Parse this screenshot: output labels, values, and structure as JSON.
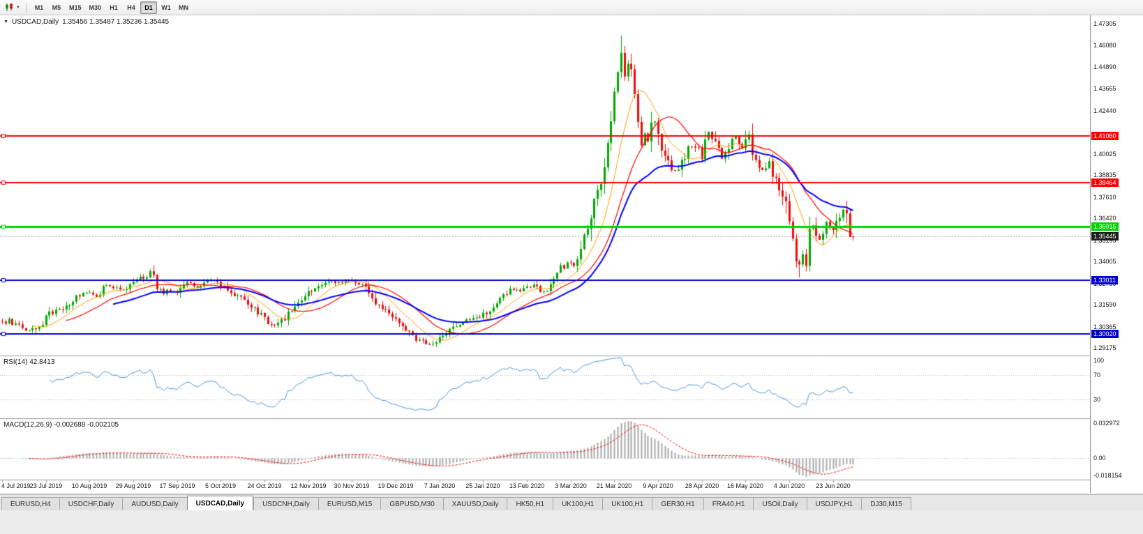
{
  "toolbar": {
    "chart_type_icon": "candlestick-chart-icon",
    "timeframes": [
      "M1",
      "M5",
      "M15",
      "M30",
      "H1",
      "H4",
      "D1",
      "W1",
      "MN"
    ],
    "active_timeframe": "D1"
  },
  "tabs": [
    {
      "label": "EURUSD,H4",
      "active": false
    },
    {
      "label": "USDCHF,Daily",
      "active": false
    },
    {
      "label": "AUDUSD,Daily",
      "active": false
    },
    {
      "label": "USDCAD,Daily",
      "active": true
    },
    {
      "label": "USDCNH,Daily",
      "active": false
    },
    {
      "label": "EURUSD,M15",
      "active": false
    },
    {
      "label": "GBPUSD,M30",
      "active": false
    },
    {
      "label": "XAUUSD,Daily",
      "active": false
    },
    {
      "label": "HK50,H1",
      "active": false
    },
    {
      "label": "UK100,H1",
      "active": false
    },
    {
      "label": "UK100,H1",
      "active": false
    },
    {
      "label": "GER30,H1",
      "active": false
    },
    {
      "label": "FRA40,H1",
      "active": false
    },
    {
      "label": "USOil,Daily",
      "active": false
    },
    {
      "label": "USDJPY,H1",
      "active": false
    },
    {
      "label": "DJ30,M15",
      "active": false
    }
  ],
  "chart_data": {
    "type": "candlestick-with-indicators",
    "main": {
      "title_symbol": "USDCAD,Daily",
      "title_quote": "1.35456 1.35487 1.35236 1.35445",
      "last_quote": {
        "open": 1.35456,
        "high": 1.35487,
        "low": 1.35236,
        "close": 1.35445
      },
      "current_price": 1.35445,
      "price_scale": {
        "max": 1.4765,
        "min": 1.2888
      },
      "price_axis_labels": [
        1.47305,
        1.4608,
        1.4489,
        1.43665,
        1.4244,
        1.40025,
        1.38835,
        1.3761,
        1.3642,
        1.35195,
        1.34005,
        1.3278,
        1.3159,
        1.30365,
        1.29175
      ],
      "x_axis_labels": [
        "4 Jul 2019",
        "23 Jul 2019",
        "10 Aug 2019",
        "29 Aug 2019",
        "17 Sep 2019",
        "5 Oct 2019",
        "24 Oct 2019",
        "12 Nov 2019",
        "30 Nov 2019",
        "19 Dec 2019",
        "7 Jan 2020",
        "25 Jan 2020",
        "13 Feb 2020",
        "3 Mar 2020",
        "21 Mar 2020",
        "9 Apr 2020",
        "28 Apr 2020",
        "16 May 2020",
        "4 Jun 2020",
        "23 Jun 2020"
      ],
      "bars_per_label": 13,
      "candle_count": 254,
      "colors": {
        "up": "#00a800",
        "down": "#ee0c0c",
        "current_line": "#b0b0b0",
        "current_tag_bg": "#1b1b1b"
      },
      "lines": [
        {
          "name": "resistance-line-1",
          "price": 1.4106,
          "color": "#ff0000",
          "width": 2
        },
        {
          "name": "resistance-line-2",
          "price": 1.38464,
          "color": "#ff0000",
          "width": 2
        },
        {
          "name": "pivot-line-green",
          "price": 1.36015,
          "color": "#00d200",
          "width": 3
        },
        {
          "name": "support-line-1",
          "price": 1.33011,
          "color": "#0000cd",
          "width": 2
        },
        {
          "name": "support-line-2",
          "price": 1.3002,
          "color": "#0000cd",
          "width": 2
        }
      ],
      "moving_averages": [
        {
          "name": "ma-fast",
          "type": "sma",
          "period": 10,
          "color": "#ff9c00",
          "width": 1
        },
        {
          "name": "ma-medium",
          "type": "sma",
          "period": 20,
          "color": "#ff0000",
          "width": 1.2
        },
        {
          "name": "ma-slow",
          "type": "ema",
          "period": 34,
          "color": "#0000ff",
          "width": 2
        }
      ],
      "extremes": [
        {
          "index": 184,
          "kind": "high",
          "price": 1.4668
        },
        {
          "index": 237,
          "kind": "low",
          "price": 1.3316
        }
      ],
      "close_anchors": [
        [
          0,
          1.3062
        ],
        [
          2,
          1.3078
        ],
        [
          4,
          1.3052
        ],
        [
          6,
          1.303
        ],
        [
          8,
          1.3018
        ],
        [
          10,
          1.3032
        ],
        [
          12,
          1.306
        ],
        [
          14,
          1.3112
        ],
        [
          16,
          1.313
        ],
        [
          18,
          1.3148
        ],
        [
          20,
          1.3178
        ],
        [
          22,
          1.3212
        ],
        [
          24,
          1.3232
        ],
        [
          26,
          1.3226
        ],
        [
          28,
          1.321
        ],
        [
          30,
          1.3252
        ],
        [
          32,
          1.327
        ],
        [
          34,
          1.3262
        ],
        [
          36,
          1.3248
        ],
        [
          38,
          1.3278
        ],
        [
          40,
          1.3298
        ],
        [
          42,
          1.3318
        ],
        [
          44,
          1.3342
        ],
        [
          45,
          1.331
        ],
        [
          46,
          1.3262
        ],
        [
          48,
          1.3228
        ],
        [
          50,
          1.3244
        ],
        [
          52,
          1.3226
        ],
        [
          54,
          1.3262
        ],
        [
          56,
          1.3288
        ],
        [
          58,
          1.3258
        ],
        [
          60,
          1.3282
        ],
        [
          62,
          1.33
        ],
        [
          64,
          1.3292
        ],
        [
          66,
          1.3262
        ],
        [
          68,
          1.3232
        ],
        [
          70,
          1.3214
        ],
        [
          72,
          1.3186
        ],
        [
          74,
          1.3152
        ],
        [
          76,
          1.3122
        ],
        [
          78,
          1.3086
        ],
        [
          80,
          1.3048
        ],
        [
          82,
          1.3062
        ],
        [
          84,
          1.3096
        ],
        [
          86,
          1.314
        ],
        [
          88,
          1.3186
        ],
        [
          90,
          1.3222
        ],
        [
          92,
          1.3252
        ],
        [
          94,
          1.3272
        ],
        [
          96,
          1.3288
        ],
        [
          98,
          1.3302
        ],
        [
          100,
          1.3288
        ],
        [
          102,
          1.3296
        ],
        [
          104,
          1.3304
        ],
        [
          106,
          1.3282
        ],
        [
          108,
          1.3252
        ],
        [
          110,
          1.321
        ],
        [
          112,
          1.3164
        ],
        [
          114,
          1.313
        ],
        [
          116,
          1.3094
        ],
        [
          118,
          1.3058
        ],
        [
          120,
          1.3022
        ],
        [
          122,
          1.2988
        ],
        [
          124,
          1.2962
        ],
        [
          126,
          1.2948
        ],
        [
          128,
          1.2956
        ],
        [
          130,
          1.2978
        ],
        [
          132,
          1.3008
        ],
        [
          134,
          1.3036
        ],
        [
          136,
          1.3058
        ],
        [
          138,
          1.3072
        ],
        [
          140,
          1.3082
        ],
        [
          142,
          1.3098
        ],
        [
          144,
          1.3124
        ],
        [
          146,
          1.3158
        ],
        [
          148,
          1.3196
        ],
        [
          150,
          1.3228
        ],
        [
          152,
          1.3252
        ],
        [
          154,
          1.3242
        ],
        [
          156,
          1.3256
        ],
        [
          158,
          1.3272
        ],
        [
          160,
          1.3234
        ],
        [
          162,
          1.3258
        ],
        [
          164,
          1.3302
        ],
        [
          166,
          1.3364
        ],
        [
          168,
          1.3402
        ],
        [
          170,
          1.3388
        ],
        [
          172,
          1.3442
        ],
        [
          174,
          1.3608
        ],
        [
          176,
          1.3742
        ],
        [
          178,
          1.3866
        ],
        [
          180,
          1.4052
        ],
        [
          182,
          1.431
        ],
        [
          183,
          1.4472
        ],
        [
          184,
          1.4568
        ],
        [
          185,
          1.442
        ],
        [
          186,
          1.4512
        ],
        [
          187,
          1.4466
        ],
        [
          188,
          1.4302
        ],
        [
          189,
          1.416
        ],
        [
          190,
          1.4072
        ],
        [
          191,
          1.412
        ],
        [
          192,
          1.4082
        ],
        [
          193,
          1.4146
        ],
        [
          194,
          1.419
        ],
        [
          195,
          1.4108
        ],
        [
          196,
          1.4042
        ],
        [
          198,
          1.3966
        ],
        [
          200,
          1.3902
        ],
        [
          202,
          1.3946
        ],
        [
          204,
          1.4066
        ],
        [
          206,
          1.4044
        ],
        [
          208,
          1.4002
        ],
        [
          209,
          1.4094
        ],
        [
          210,
          1.4136
        ],
        [
          212,
          1.4066
        ],
        [
          214,
          1.3976
        ],
        [
          216,
          1.4052
        ],
        [
          218,
          1.4098
        ],
        [
          220,
          1.4032
        ],
        [
          222,
          1.4116
        ],
        [
          224,
          1.3962
        ],
        [
          226,
          1.3916
        ],
        [
          228,
          1.3962
        ],
        [
          230,
          1.3838
        ],
        [
          232,
          1.3778
        ],
        [
          233,
          1.3712
        ],
        [
          234,
          1.3592
        ],
        [
          235,
          1.3508
        ],
        [
          236,
          1.3436
        ],
        [
          237,
          1.3384
        ],
        [
          238,
          1.3446
        ],
        [
          239,
          1.3414
        ],
        [
          240,
          1.3548
        ],
        [
          241,
          1.3606
        ],
        [
          242,
          1.3562
        ],
        [
          243,
          1.3532
        ],
        [
          244,
          1.3558
        ],
        [
          245,
          1.3612
        ],
        [
          246,
          1.3598
        ],
        [
          247,
          1.3564
        ],
        [
          248,
          1.3642
        ],
        [
          249,
          1.3666
        ],
        [
          250,
          1.3696
        ],
        [
          251,
          1.3648
        ],
        [
          252,
          1.3565
        ],
        [
          253,
          1.35445
        ]
      ]
    },
    "rsi": {
      "label": "RSI(14) 42.8413",
      "period": 14,
      "current": 42.8413,
      "line_color": "#4f96d8",
      "levels": [
        70,
        30
      ],
      "axis_labels": [
        {
          "text": "100",
          "value": 100
        },
        {
          "text": "70",
          "value": 70
        },
        {
          "text": "30",
          "value": 30
        }
      ]
    },
    "macd": {
      "label": "MACD(12,26,9) -0.002688 -0.002105",
      "fast": 12,
      "slow": 26,
      "signal": 9,
      "current_main": -0.002688,
      "current_signal": -0.002105,
      "hist_color": "#a8a8a8",
      "signal_color": "#ff0000",
      "axis_labels": [
        {
          "text": "0.032972",
          "value": 0.032972
        },
        {
          "text": "0.00",
          "value": 0
        },
        {
          "text": "-0.018154",
          "value": -0.018154
        }
      ]
    }
  }
}
